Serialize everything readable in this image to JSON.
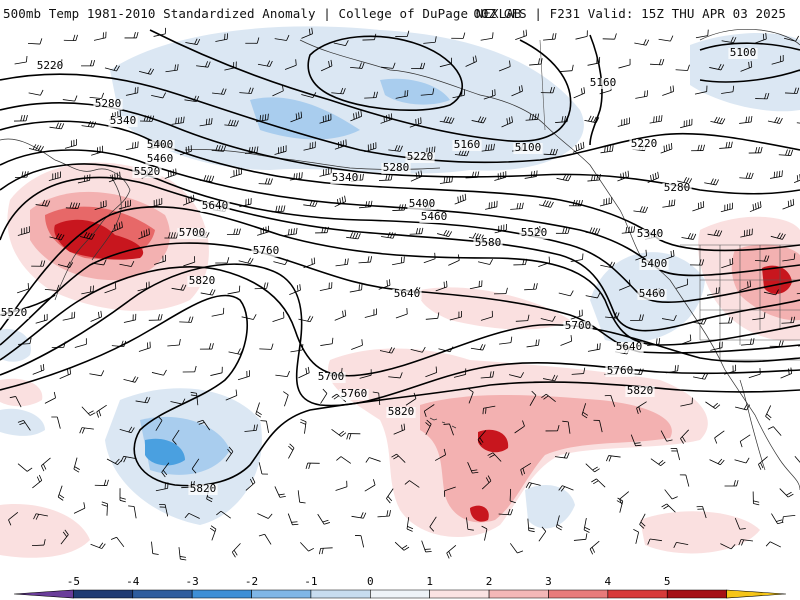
{
  "header": {
    "left_title": "500mb Temp 1981-2010 Standardized Anomaly | College of DuPage NEXLAB",
    "right_title": "00Z GFS | F231 Valid: 15Z THU APR 03 2025"
  },
  "contour_labels": [
    "5100",
    "5100",
    "5160",
    "5160",
    "5220",
    "5220",
    "5220",
    "5280",
    "5280",
    "5280",
    "5340",
    "5340",
    "5340",
    "5400",
    "5400",
    "5400",
    "5460",
    "5460",
    "5460",
    "5520",
    "5520",
    "5520",
    "5580",
    "5640",
    "5640",
    "5640",
    "5700",
    "5700",
    "5700",
    "5760",
    "5760",
    "5760",
    "5820",
    "5820",
    "5820",
    "5820"
  ],
  "colorbar": {
    "ticks": [
      "-5",
      "-4",
      "-3",
      "-2",
      "-1",
      "0",
      "1",
      "2",
      "3",
      "4",
      "5"
    ],
    "colors": [
      "#6a3d9a",
      "#1f3b73",
      "#2e5d9e",
      "#3d8fd6",
      "#7fb6e6",
      "#c7dcef",
      "#eef3f8",
      "#fbe3e3",
      "#f4b7b7",
      "#e87b7b",
      "#d73a3a",
      "#a50f15",
      "#f5c518"
    ]
  },
  "anomaly_colors": {
    "cold_1": "#dbe7f3",
    "cold_2": "#a9cdee",
    "cold_3": "#4aa0e0",
    "warm_1": "#fae0e0",
    "warm_2": "#f3b1b1",
    "warm_3": "#e76868",
    "warm_4": "#c8161e"
  }
}
